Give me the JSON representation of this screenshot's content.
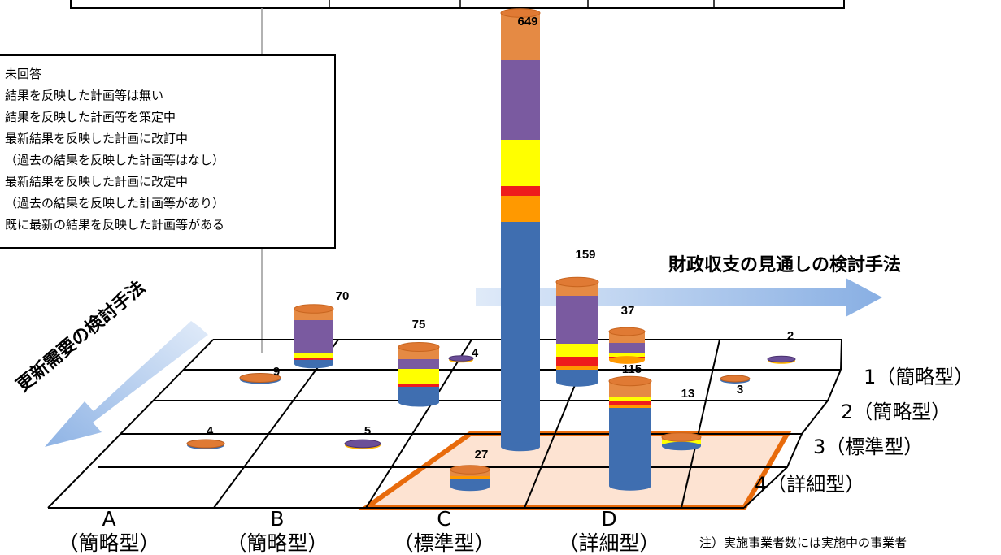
{
  "chart_data": {
    "type": "bar",
    "subtype": "3d-cylinder-stacked-grid",
    "grid_rows_axis_label": "財政収支の見通しの検討手法",
    "grid_cols_axis_label": "更新需要の検討手法",
    "row_labels": [
      "1（簡略型）",
      "2（簡略型）",
      "3（標準型）",
      "4（詳細型）"
    ],
    "col_letters": [
      "A",
      "B",
      "C",
      "D"
    ],
    "col_types": [
      "（簡略型）",
      "（簡略型）",
      "（標準型）",
      "（詳細型）"
    ],
    "legend": [
      "未回答",
      "結果を反映した計画等は無い",
      "結果を反映した計画等を策定中",
      "最新結果を反映した計画に改訂中",
      "（過去の結果を反映した計画等はなし）",
      "最新結果を反映した計画に改定中",
      "（過去の結果を反映した計画等があり）",
      "既に最新の結果を反映した計画等がある"
    ],
    "legend_colors": [
      "#e58a44",
      "#7a5aa0",
      "#ffff00",
      "#ee1c1c",
      "#ff9900",
      "#3f6eb0"
    ],
    "cells": [
      {
        "row": 1,
        "col": "A",
        "total": 70
      },
      {
        "row": 1,
        "col": "B",
        "total": 4
      },
      {
        "row": 1,
        "col": "C",
        "total": 649
      },
      {
        "row": 1,
        "col": "D",
        "total": 37
      },
      {
        "row": 1,
        "col": "E",
        "total": 2
      },
      {
        "row": 2,
        "col": "A",
        "total": 9
      },
      {
        "row": 2,
        "col": "B",
        "total": 75
      },
      {
        "row": 2,
        "col": "C",
        "total": 159
      },
      {
        "row": 2,
        "col": "D",
        "total": 3
      },
      {
        "row": 3,
        "col": "A",
        "total": 4
      },
      {
        "row": 3,
        "col": "B",
        "total": 5
      },
      {
        "row": 3,
        "col": "D",
        "total": 115
      },
      {
        "row": 3,
        "col": "D+",
        "total": 13
      },
      {
        "row": 4,
        "col": "C",
        "total": 27
      }
    ],
    "highlight": "C-D × 3-4",
    "note": "注）実施事業者数には実施中の事業者"
  }
}
